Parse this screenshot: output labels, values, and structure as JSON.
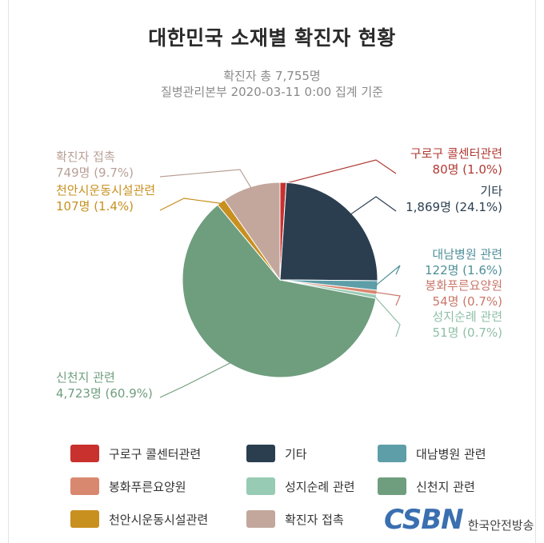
{
  "chart_data": {
    "type": "pie",
    "title": "대한민국 소재별 확진자 현황",
    "subtitle": [
      "확진자 총 7,755명",
      "질병관리본부 2020-03-11 0:00 집계 기준"
    ],
    "total": 7755,
    "slices": [
      {
        "name": "구로구 콜센터관련",
        "value": 80,
        "label": "80명 (1.0%)",
        "color": "#c8312e"
      },
      {
        "name": "기타",
        "value": 1869,
        "label": "1,869명 (24.1%)",
        "color": "#2b3e50"
      },
      {
        "name": "대남병원 관련",
        "value": 122,
        "label": "122명 (1.6%)",
        "color": "#5d9ea8"
      },
      {
        "name": "봉화푸른요양원",
        "value": 54,
        "label": "54명 (0.7%)",
        "color": "#d98870"
      },
      {
        "name": "성지순례 관련",
        "value": 51,
        "label": "51명 (0.7%)",
        "color": "#98cbb4"
      },
      {
        "name": "신천지 관련",
        "value": 4723,
        "label": "4,723명 (60.9%)",
        "color": "#6f9e7e"
      },
      {
        "name": "천안시운동시설관련",
        "value": 107,
        "label": "107명 (1.4%)",
        "color": "#c8901f"
      },
      {
        "name": "확진자 접촉",
        "value": 749,
        "label": "749명 (9.7%)",
        "color": "#c3a79c"
      }
    ],
    "label_colors": {
      "구로구 콜센터관련": "#b03a33",
      "기타": "#2b3e50",
      "대남병원 관련": "#4f8f99",
      "봉화푸른요양원": "#c8776a",
      "성지순례 관련": "#8fbfa7",
      "신천지 관련": "#6f9e7e",
      "천안시운동시설관련": "#c8901f",
      "확진자 접촉": "#b8a097"
    },
    "legend_placement": "bottom"
  },
  "branding": {
    "logo_mark": "CSBN",
    "logo_text": "한국안전방송"
  }
}
